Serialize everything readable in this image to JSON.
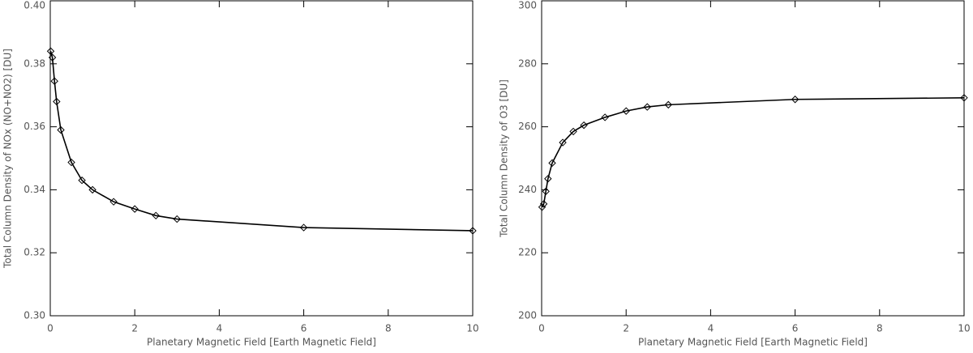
{
  "chart_data": [
    {
      "type": "line",
      "x_label": "Planetary Magnetic Field [Earth Magnetic Field]",
      "y_label": "Total Column Density of NOx (NO+NO2) [DU]",
      "series": [
        {
          "color": "#000000",
          "x": [
            0.01,
            0.05,
            0.1,
            0.15,
            0.25,
            0.5,
            0.75,
            1,
            1.5,
            2,
            2.5,
            3,
            6,
            10
          ],
          "values": [
            0.384,
            0.382,
            0.3745,
            0.368,
            0.359,
            0.3487,
            0.343,
            0.34,
            0.3362,
            0.3339,
            0.3318,
            0.3307,
            0.328,
            0.327
          ]
        }
      ],
      "xlim": [
        0,
        10
      ],
      "xticks": [
        0,
        2,
        4,
        6,
        8,
        10
      ],
      "ylim": [
        0.3,
        0.4
      ],
      "yticks": [
        {
          "value": 0.3,
          "label": "0.30"
        },
        0.32,
        0.34,
        0.36,
        0.38,
        {
          "value": 0.4,
          "label": "0.40"
        }
      ]
    },
    {
      "type": "line",
      "x_label": "Planetary Magnetic Field [Earth Magnetic Field]",
      "y_label": "Total Column Density of O3 [DU]",
      "series": [
        {
          "color": "#000000",
          "x": [
            0.01,
            0.05,
            0.1,
            0.15,
            0.25,
            0.5,
            0.75,
            1,
            1.5,
            2,
            2.5,
            3,
            6,
            10
          ],
          "values": [
            234.5,
            235.5,
            239.5,
            243.5,
            248.5,
            255,
            258.5,
            260.5,
            263,
            265,
            266.3,
            267,
            268.7,
            269.2
          ]
        }
      ],
      "xlim": [
        0,
        10
      ],
      "xticks": [
        0,
        2,
        4,
        6,
        8,
        10
      ],
      "ylim": [
        200,
        300
      ],
      "yticks": [
        200,
        220,
        240,
        260,
        280,
        300
      ]
    }
  ]
}
